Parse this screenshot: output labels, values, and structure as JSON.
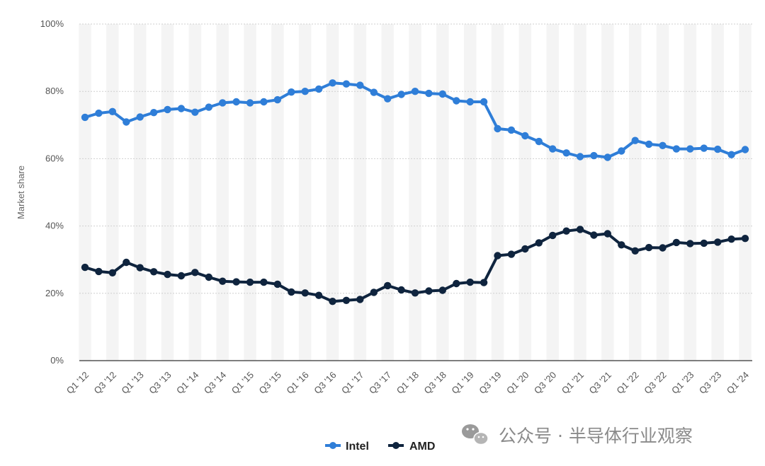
{
  "chart_data": {
    "type": "line",
    "title": "",
    "xlabel": "",
    "ylabel": "Market share",
    "ylim": [
      0,
      100
    ],
    "y_ticks": [
      0,
      20,
      40,
      60,
      80,
      100
    ],
    "y_tick_labels": [
      "0%",
      "20%",
      "40%",
      "60%",
      "80%",
      "100%"
    ],
    "grid": true,
    "legend_position": "bottom-center",
    "categories": [
      "Q1 '12",
      "Q2 '12",
      "Q3 '12",
      "Q4 '12",
      "Q1 '13",
      "Q2 '13",
      "Q3 '13",
      "Q4 '13",
      "Q1 '14",
      "Q2 '14",
      "Q3 '14",
      "Q4 '14",
      "Q1 '15",
      "Q2 '15",
      "Q3 '15",
      "Q4 '15",
      "Q1 '16",
      "Q2 '16",
      "Q3 '16",
      "Q4 '16",
      "Q1 '17",
      "Q2 '17",
      "Q3 '17",
      "Q4 '17",
      "Q1 '18",
      "Q2 '18",
      "Q3 '18",
      "Q4 '18",
      "Q1 '19",
      "Q2 '19",
      "Q3 '19",
      "Q4 '19",
      "Q1 '20",
      "Q2 '20",
      "Q3 '20",
      "Q4 '20",
      "Q1 '21",
      "Q2 '21",
      "Q3 '21",
      "Q4 '21",
      "Q1 '22",
      "Q2 '22",
      "Q3 '22",
      "Q4 '22",
      "Q1 '23",
      "Q2 '23",
      "Q3 '23",
      "Q4 '23",
      "Q1 '24"
    ],
    "x_tick_labels": [
      "Q1 '12",
      "Q3 '12",
      "Q1 '13",
      "Q3 '13",
      "Q1 '14",
      "Q3 '14",
      "Q1 '15",
      "Q3 '15",
      "Q1 '16",
      "Q3 '16",
      "Q1 '17",
      "Q3 '17",
      "Q1 '18",
      "Q3 '18",
      "Q1 '19",
      "Q3 '19",
      "Q1 '20",
      "Q3 '20",
      "Q1 '21",
      "Q3 '21",
      "Q1 '22",
      "Q3 '22",
      "Q1 '23",
      "Q3 '23",
      "Q1 '24"
    ],
    "series": [
      {
        "name": "Intel",
        "color": "#2f7ed8",
        "values": [
          72.3,
          73.5,
          74.0,
          70.9,
          72.4,
          73.7,
          74.6,
          74.9,
          73.8,
          75.3,
          76.6,
          76.9,
          76.6,
          76.9,
          77.5,
          79.8,
          80.0,
          80.7,
          82.5,
          82.2,
          81.8,
          79.7,
          77.8,
          79.1,
          80.0,
          79.4,
          79.2,
          77.2,
          76.9,
          76.9,
          68.9,
          68.5,
          66.8,
          65.1,
          62.9,
          61.7,
          60.6,
          60.9,
          60.4,
          62.3,
          65.4,
          64.3,
          63.9,
          62.9,
          62.9,
          63.1,
          62.8,
          61.2,
          62.7
        ]
      },
      {
        "name": "AMD",
        "color": "#0f243e",
        "values": [
          27.7,
          26.5,
          26.1,
          29.2,
          27.6,
          26.4,
          25.6,
          25.2,
          26.2,
          24.8,
          23.6,
          23.4,
          23.3,
          23.3,
          22.7,
          20.4,
          20.1,
          19.4,
          17.6,
          17.9,
          18.2,
          20.3,
          22.3,
          21.0,
          20.1,
          20.7,
          20.9,
          22.9,
          23.3,
          23.2,
          31.2,
          31.6,
          33.2,
          35.0,
          37.2,
          38.5,
          39.0,
          37.3,
          37.7,
          34.4,
          32.6,
          33.6,
          33.5,
          35.1,
          34.8,
          34.9,
          35.2,
          36.1,
          36.3
        ]
      }
    ]
  },
  "legend": {
    "items": [
      {
        "label": "Intel",
        "color": "#2f7ed8"
      },
      {
        "label": "AMD",
        "color": "#0f243e"
      }
    ]
  },
  "watermark": {
    "text": "公众号 · 半导体行业观察",
    "icon": "wechat-icon"
  }
}
